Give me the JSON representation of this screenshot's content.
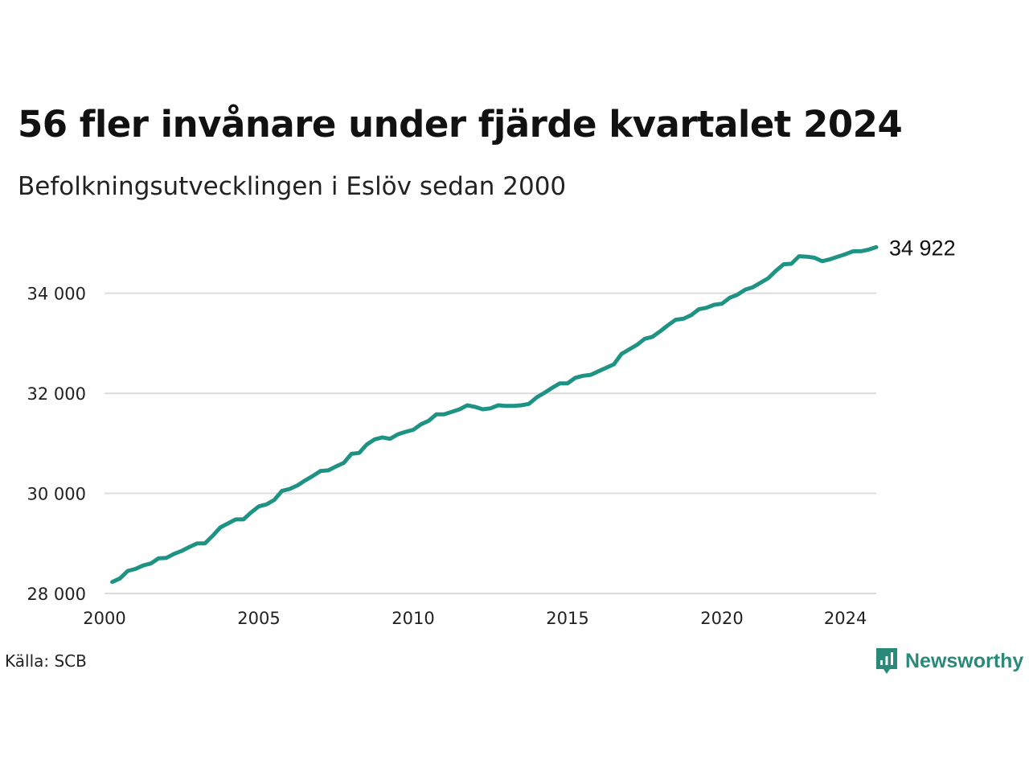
{
  "title": "56 fler invånare under fjärde kvartalet 2024",
  "subtitle": "Befolkningsutvecklingen i Eslöv sedan 2000",
  "source": "Källa: SCB",
  "logo_text": "Newsworthy",
  "colors": {
    "line": "#1f9383",
    "grid": "#dcdcdc",
    "logo": "#2a8a7a"
  },
  "chart_data": {
    "type": "line",
    "x_axis": {
      "min": 2000,
      "max": 2025.0,
      "ticks": [
        2000,
        2005,
        2010,
        2015,
        2020,
        2024
      ],
      "tick_labels": [
        "2000",
        "2005",
        "2010",
        "2015",
        "2020",
        "2024"
      ]
    },
    "y_axis": {
      "min": 28000,
      "max": 35200,
      "ticks": [
        28000,
        30000,
        32000,
        34000
      ],
      "tick_labels": [
        "28 000",
        "30 000",
        "32 000",
        "34 000"
      ]
    },
    "grid": true,
    "end_label": "34 922",
    "series": [
      {
        "x": [
          2000.25,
          2000.5,
          2000.75,
          2001.0,
          2001.25,
          2001.5,
          2001.75,
          2002.0,
          2002.25,
          2002.5,
          2002.75,
          2003.0,
          2003.25,
          2003.5,
          2003.75,
          2004.0,
          2004.25,
          2004.5,
          2004.75,
          2005.0,
          2005.25,
          2005.5,
          2005.75,
          2006.0,
          2006.25,
          2006.5,
          2006.75,
          2007.0,
          2007.25,
          2007.5,
          2007.75,
          2008.0,
          2008.25,
          2008.5,
          2008.75,
          2009.0,
          2009.25,
          2009.5,
          2009.75,
          2010.0,
          2010.25,
          2010.5,
          2010.75,
          2011.0,
          2011.25,
          2011.5,
          2011.75,
          2012.0,
          2012.25,
          2012.5,
          2012.75,
          2013.0,
          2013.25,
          2013.5,
          2013.75,
          2014.0,
          2014.25,
          2014.5,
          2014.75,
          2015.0,
          2015.25,
          2015.5,
          2015.75,
          2016.0,
          2016.25,
          2016.5,
          2016.75,
          2017.0,
          2017.25,
          2017.5,
          2017.75,
          2018.0,
          2018.25,
          2018.5,
          2018.75,
          2019.0,
          2019.25,
          2019.5,
          2019.75,
          2020.0,
          2020.25,
          2020.5,
          2020.75,
          2021.0,
          2021.25,
          2021.5,
          2021.75,
          2022.0,
          2022.25,
          2022.5,
          2022.75,
          2023.0,
          2023.25,
          2023.5,
          2023.75,
          2024.0,
          2024.25,
          2024.5,
          2024.75,
          2025.0
        ],
        "values": [
          28230,
          28300,
          28450,
          28490,
          28560,
          28600,
          28700,
          28710,
          28790,
          28850,
          28930,
          29000,
          29000,
          29150,
          29320,
          29400,
          29480,
          29480,
          29620,
          29740,
          29780,
          29870,
          30050,
          30090,
          30160,
          30260,
          30350,
          30450,
          30460,
          30540,
          30610,
          30790,
          30810,
          30980,
          31080,
          31120,
          31090,
          31180,
          31230,
          31270,
          31380,
          31450,
          31580,
          31580,
          31630,
          31680,
          31760,
          31730,
          31680,
          31700,
          31760,
          31750,
          31750,
          31760,
          31790,
          31920,
          32010,
          32110,
          32200,
          32200,
          32310,
          32350,
          32370,
          32440,
          32510,
          32580,
          32790,
          32880,
          32970,
          33090,
          33130,
          33240,
          33360,
          33470,
          33490,
          33560,
          33680,
          33710,
          33770,
          33790,
          33910,
          33970,
          34070,
          34120,
          34210,
          34300,
          34450,
          34580,
          34590,
          34740,
          34730,
          34710,
          34640,
          34680,
          34730,
          34780,
          34840,
          34840,
          34870,
          34922
        ]
      }
    ]
  }
}
